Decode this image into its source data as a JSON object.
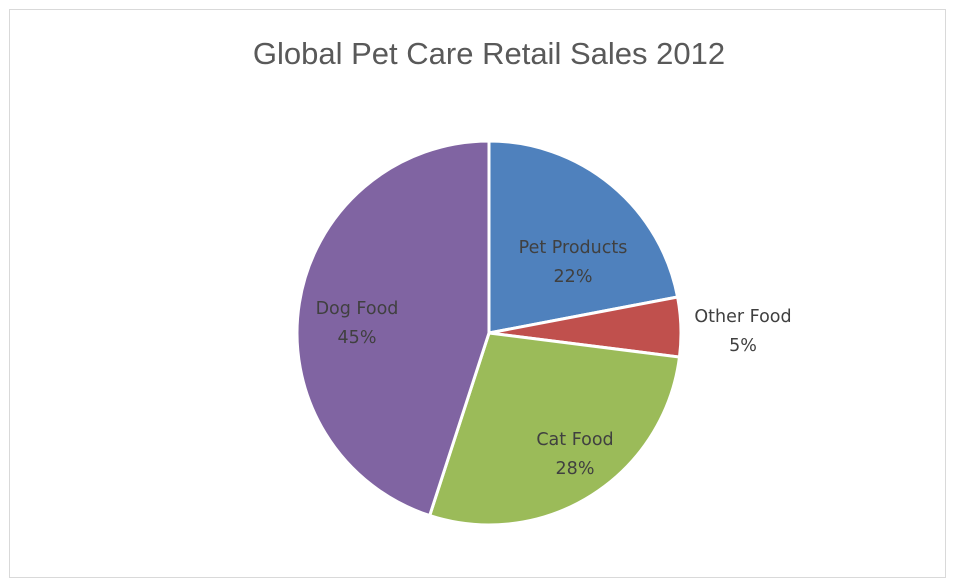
{
  "chart_data": {
    "type": "pie",
    "title": "Global Pet Care Retail Sales 2012",
    "slices": [
      {
        "label": "Pet Products",
        "percent_label": "22%",
        "value": 22,
        "color": "#4f81bd"
      },
      {
        "label": "Other Food",
        "percent_label": "5%",
        "value": 5,
        "color": "#c0504d"
      },
      {
        "label": "Cat Food",
        "percent_label": "28%",
        "value": 28,
        "color": "#9bbb59"
      },
      {
        "label": "Dog Food",
        "percent_label": "45%",
        "value": 45,
        "color": "#8064a2"
      }
    ],
    "legend": "none",
    "data_labels": "category name and percentage"
  }
}
